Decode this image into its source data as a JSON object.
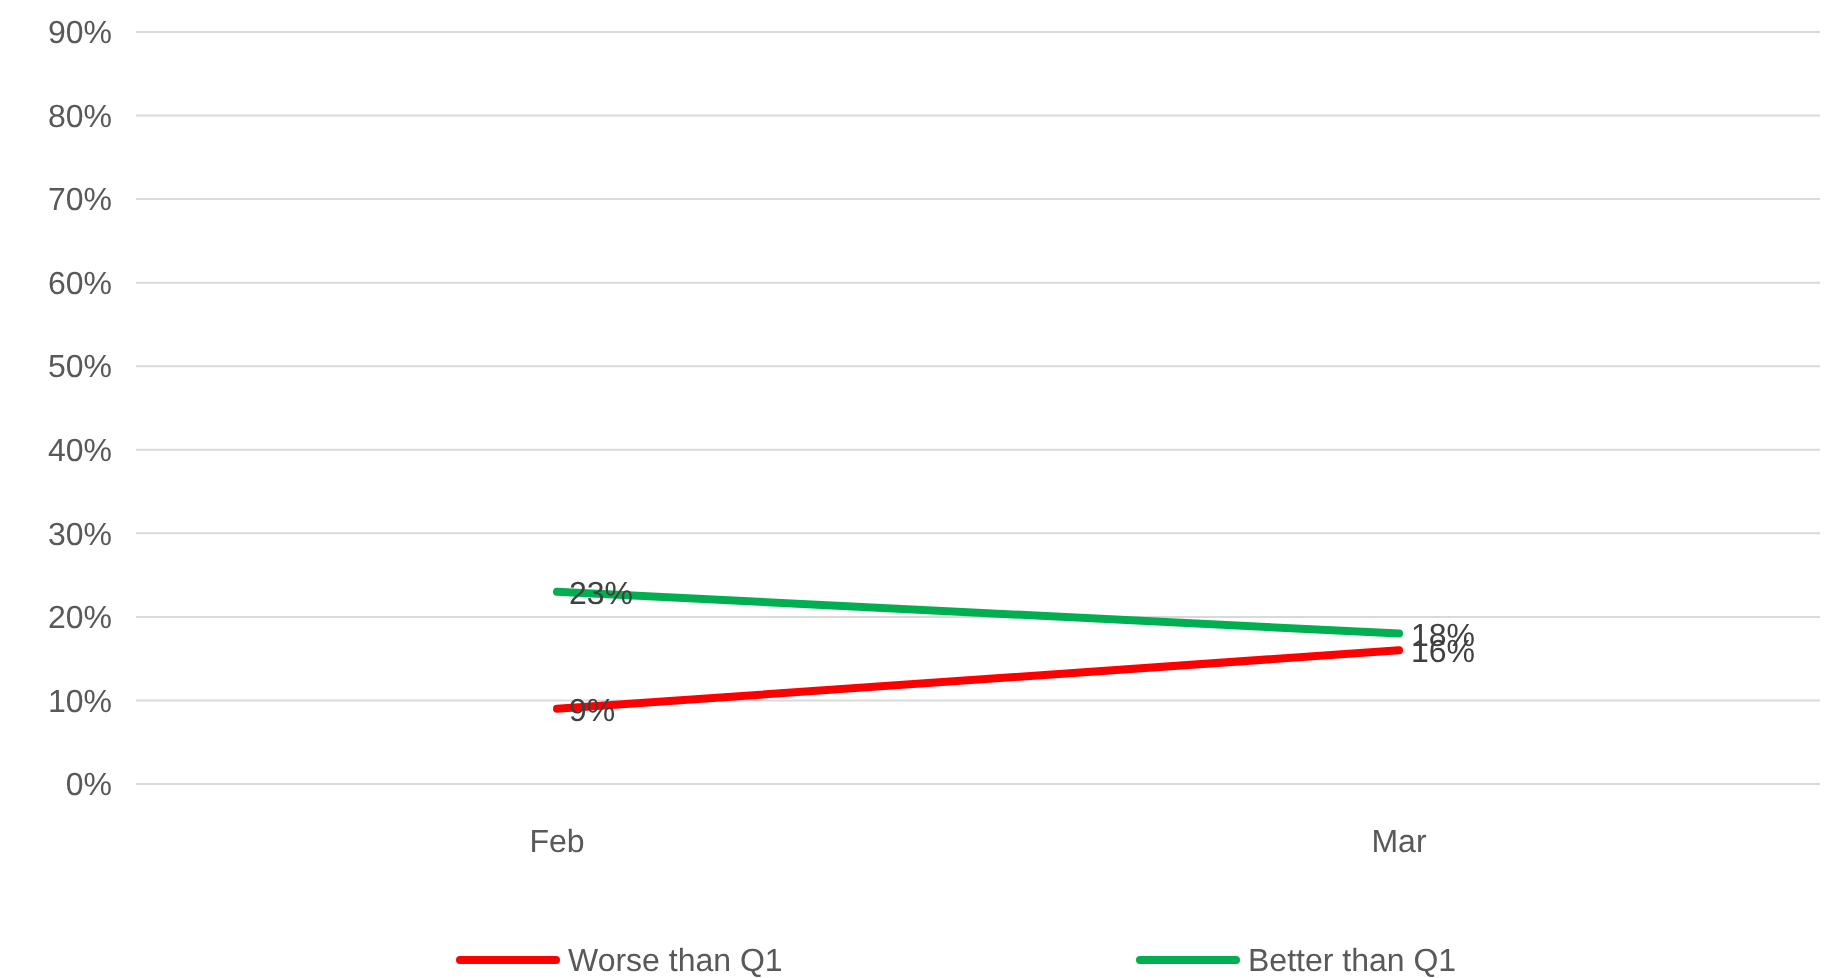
{
  "chart_data": {
    "type": "line",
    "categories": [
      "Feb",
      "Mar"
    ],
    "series": [
      {
        "name": "Worse than Q1",
        "color": "#ff0000",
        "values": [
          9,
          16
        ],
        "value_labels": [
          "9%",
          "16%"
        ]
      },
      {
        "name": "Better than Q1",
        "color": "#00b050",
        "values": [
          23,
          18
        ],
        "value_labels": [
          "23%",
          "18%"
        ]
      }
    ],
    "ylim": [
      0,
      90
    ],
    "yticks": [
      {
        "value": 0,
        "label": "0%"
      },
      {
        "value": 10,
        "label": "10%"
      },
      {
        "value": 20,
        "label": "20%"
      },
      {
        "value": 30,
        "label": "30%"
      },
      {
        "value": 40,
        "label": "40%"
      },
      {
        "value": 50,
        "label": "50%"
      },
      {
        "value": 60,
        "label": "60%"
      },
      {
        "value": 70,
        "label": "70%"
      },
      {
        "value": 80,
        "label": "80%"
      },
      {
        "value": 90,
        "label": "90%"
      }
    ],
    "grid": "y",
    "legend": "bottom",
    "marker": "none",
    "line_style": "solid"
  }
}
